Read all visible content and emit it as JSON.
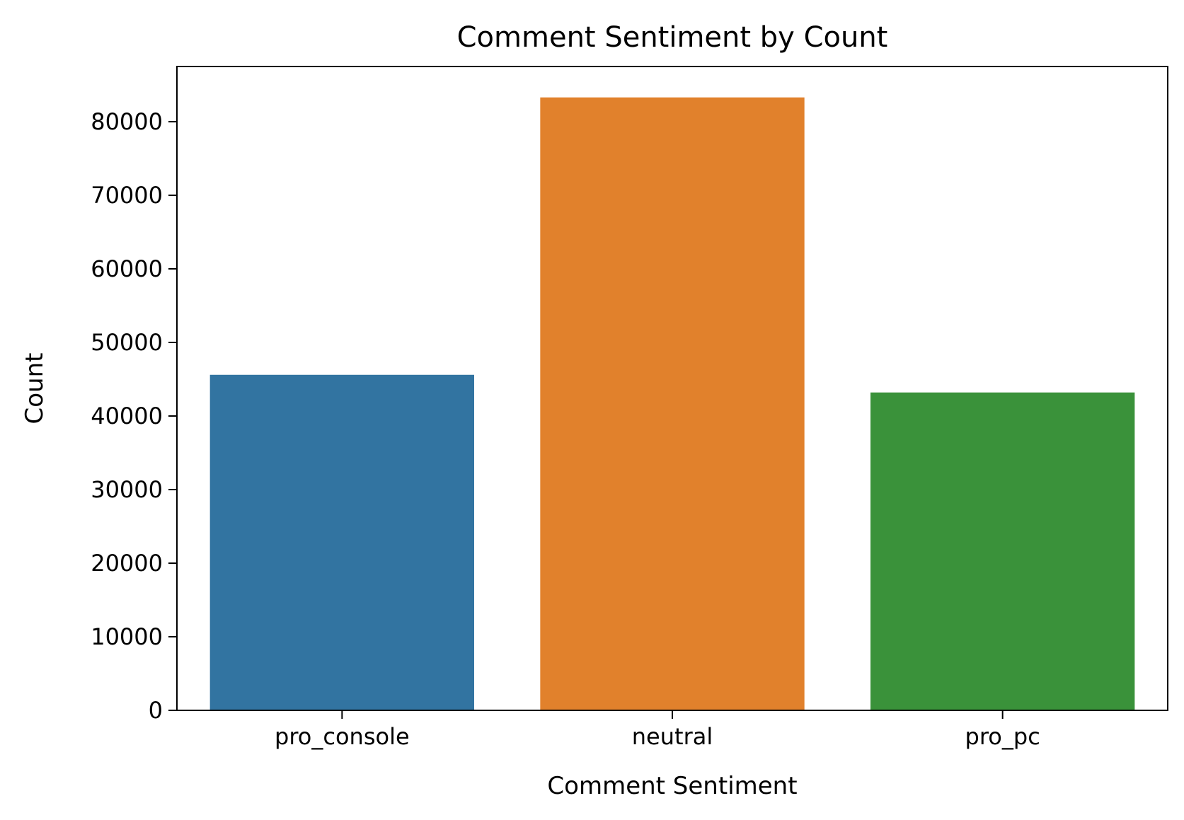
{
  "chart_data": {
    "type": "bar",
    "title": "Comment Sentiment by Count",
    "xlabel": "Comment Sentiment",
    "ylabel": "Count",
    "categories": [
      "pro_console",
      "neutral",
      "pro_pc"
    ],
    "values": [
      45600,
      83300,
      43200
    ],
    "colors": [
      "#3274a1",
      "#e1812c",
      "#3a923a"
    ],
    "ylim": [
      0,
      87500
    ],
    "yticks": [
      0,
      10000,
      20000,
      30000,
      40000,
      50000,
      60000,
      70000,
      80000
    ],
    "grid": false,
    "legend": "none"
  }
}
